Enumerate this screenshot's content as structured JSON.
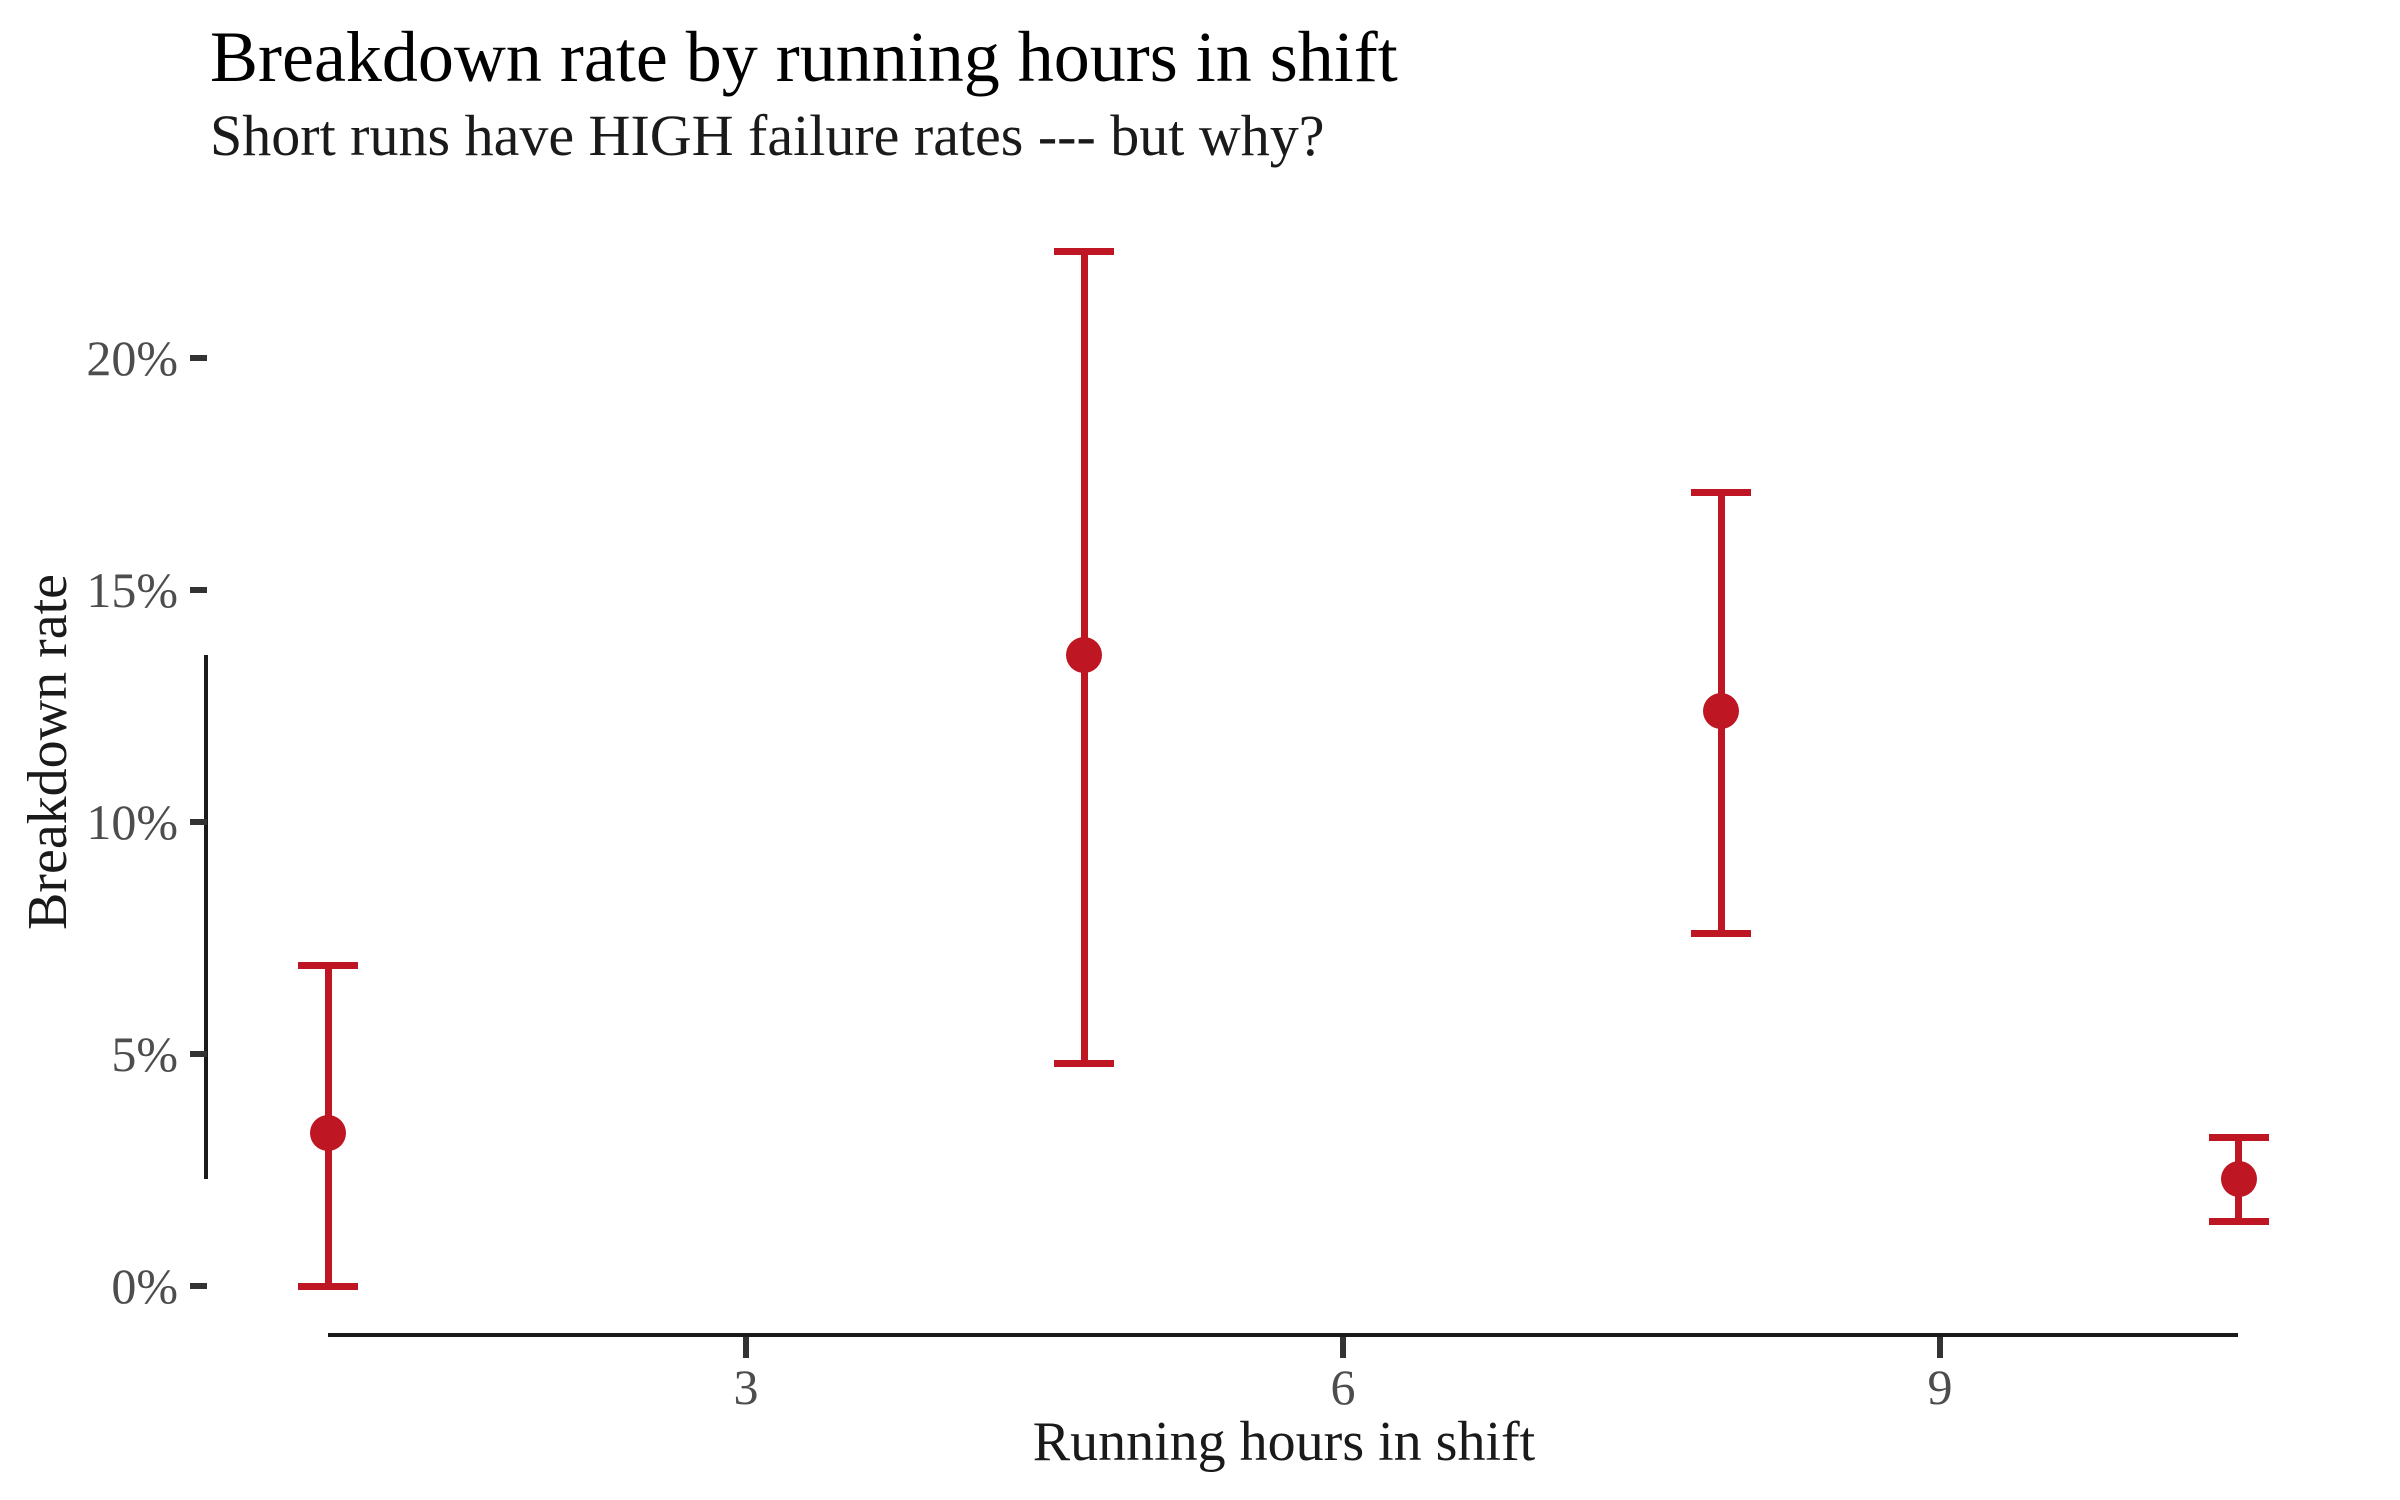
{
  "chart_data": {
    "type": "scatter",
    "subtype": "pointrange-errorbars",
    "title": "Breakdown rate by running hours in shift",
    "subtitle": "Short runs have HIGH failure rates --- but why?",
    "xlabel": "Running hours in shift",
    "ylabel": "Breakdown rate",
    "x_ticks": [
      "3",
      "6",
      "9"
    ],
    "x_tick_values": [
      3,
      6,
      9
    ],
    "y_ticks": [
      {
        "value": 0,
        "label": "0%"
      },
      {
        "value": 5,
        "label": "5%"
      },
      {
        "value": 10,
        "label": "10%"
      },
      {
        "value": 15,
        "label": "15%"
      },
      {
        "value": 20,
        "label": "20%"
      }
    ],
    "xlim": [
      0.3,
      11.1
    ],
    "ylim": [
      0,
      22.5
    ],
    "y_unit": "percent",
    "grid": false,
    "legend": false,
    "style": "tufte-range-frame (axis lines span data range only)",
    "point_color": "#BE1622",
    "axis_color": "#1a1a1a",
    "tick_color": "#333333",
    "tick_label_color": "#4d4d4d",
    "points": [
      {
        "x": 0.9,
        "y": 3.3,
        "ymin": 0.0,
        "ymax": 6.9
      },
      {
        "x": 4.7,
        "y": 13.6,
        "ymin": 4.8,
        "ymax": 22.3
      },
      {
        "x": 7.9,
        "y": 12.4,
        "ymin": 7.6,
        "ymax": 17.1
      },
      {
        "x": 10.5,
        "y": 2.3,
        "ymin": 1.4,
        "ymax": 3.2
      }
    ]
  }
}
